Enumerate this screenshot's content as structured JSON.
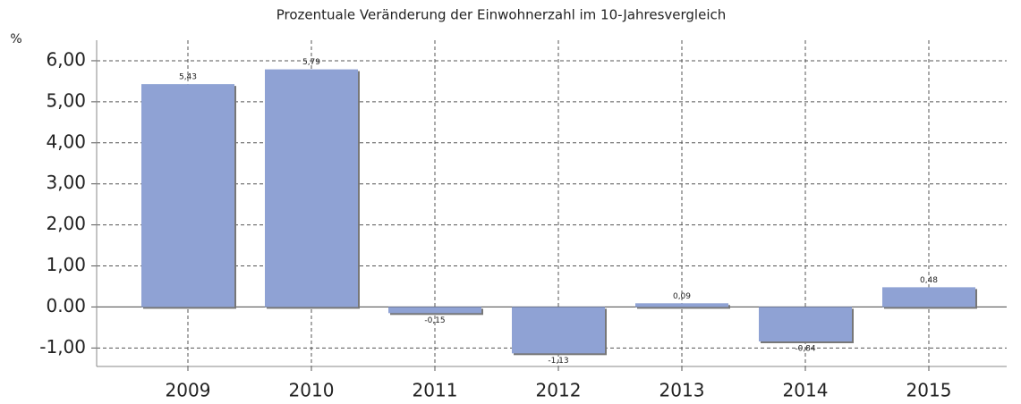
{
  "chart_data": {
    "type": "bar",
    "title": "Prozentuale Veränderung der Einwohnerzahl im 10-Jahresvergleich",
    "y_label": "%",
    "categories": [
      "2009",
      "2010",
      "2011",
      "2012",
      "2013",
      "2014",
      "2015"
    ],
    "values": [
      5.43,
      5.79,
      -0.15,
      -1.13,
      0.09,
      -0.84,
      0.48
    ],
    "value_labels": [
      "5,43",
      "5,79",
      "-0,15",
      "-1,13",
      "0,09",
      "-0,84",
      "0,48"
    ],
    "color": "#8fa2d4",
    "ylim": [
      -1.45,
      6.5
    ],
    "yticks": [
      {
        "value": -1,
        "label": "-1,00"
      },
      {
        "value": 0,
        "label": "0.00"
      },
      {
        "value": 1,
        "label": "1,00"
      },
      {
        "value": 2,
        "label": "2,00"
      },
      {
        "value": 3,
        "label": "3,00"
      },
      {
        "value": 4,
        "label": "4,00"
      },
      {
        "value": 5,
        "label": "5,00"
      },
      {
        "value": 6,
        "label": "6,00"
      }
    ],
    "grid": true
  }
}
